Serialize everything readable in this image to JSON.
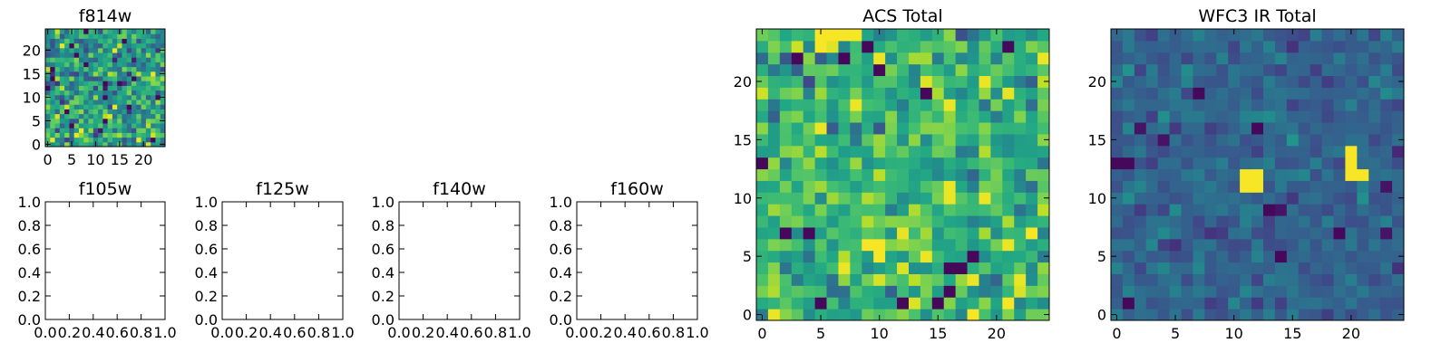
{
  "colors": {
    "colormap": "viridis",
    "axes": "#000000",
    "background": "#ffffff"
  },
  "chart_data": [
    {
      "type": "heatmap",
      "title": "f814w",
      "xlabel": "",
      "ylabel": "",
      "shape": [
        25,
        25
      ],
      "xlim": [
        -0.5,
        24.5
      ],
      "ylim": [
        -0.5,
        24.5
      ],
      "xticks": [
        0,
        5,
        10,
        15,
        20
      ],
      "yticks": [
        0,
        5,
        10,
        15,
        20
      ],
      "xtick_labels": [
        "0",
        "5",
        "10",
        "15",
        "20"
      ],
      "ytick_labels": [
        "0",
        "5",
        "10",
        "15",
        "20"
      ],
      "colormap": "viridis",
      "value_range": [
        0,
        1
      ],
      "values": "random noise, mean ~0.55, std ~0.18",
      "grid": false
    },
    {
      "type": "table",
      "title": "f105w",
      "xlim": [
        0,
        1
      ],
      "ylim": [
        0,
        1
      ],
      "xticks": [
        0,
        0.2,
        0.4,
        0.6,
        0.8,
        1.0
      ],
      "yticks": [
        0,
        0.2,
        0.4,
        0.6,
        0.8,
        1.0
      ],
      "xtick_labels": [
        "0.0",
        "0.2",
        "0.4",
        "0.6",
        "0.8",
        "1.0"
      ],
      "ytick_labels": [
        "0.0",
        "0.2",
        "0.4",
        "0.6",
        "0.8",
        "1.0"
      ],
      "empty": true
    },
    {
      "type": "table",
      "title": "f125w",
      "xlim": [
        0,
        1
      ],
      "ylim": [
        0,
        1
      ],
      "xticks": [
        0,
        0.2,
        0.4,
        0.6,
        0.8,
        1.0
      ],
      "yticks": [
        0,
        0.2,
        0.4,
        0.6,
        0.8,
        1.0
      ],
      "xtick_labels": [
        "0.0",
        "0.2",
        "0.4",
        "0.6",
        "0.8",
        "1.0"
      ],
      "ytick_labels": [
        "0.0",
        "0.2",
        "0.4",
        "0.6",
        "0.8",
        "1.0"
      ],
      "empty": true
    },
    {
      "type": "table",
      "title": "f140w",
      "xlim": [
        0,
        1
      ],
      "ylim": [
        0,
        1
      ],
      "xticks": [
        0,
        0.2,
        0.4,
        0.6,
        0.8,
        1.0
      ],
      "yticks": [
        0,
        0.2,
        0.4,
        0.6,
        0.8,
        1.0
      ],
      "xtick_labels": [
        "0.0",
        "0.2",
        "0.4",
        "0.6",
        "0.8",
        "1.0"
      ],
      "ytick_labels": [
        "0.0",
        "0.2",
        "0.4",
        "0.6",
        "0.8",
        "1.0"
      ],
      "empty": true
    },
    {
      "type": "table",
      "title": "f160w",
      "xlim": [
        0,
        1
      ],
      "ylim": [
        0,
        1
      ],
      "xticks": [
        0,
        0.2,
        0.4,
        0.6,
        0.8,
        1.0
      ],
      "yticks": [
        0,
        0.2,
        0.4,
        0.6,
        0.8,
        1.0
      ],
      "xtick_labels": [
        "0.0",
        "0.2",
        "0.4",
        "0.6",
        "0.8",
        "1.0"
      ],
      "ytick_labels": [
        "0.0",
        "0.2",
        "0.4",
        "0.6",
        "0.8",
        "1.0"
      ],
      "empty": true
    },
    {
      "type": "heatmap",
      "title": "ACS Total",
      "xlabel": "",
      "ylabel": "",
      "shape": [
        25,
        25
      ],
      "xlim": [
        -0.5,
        24.5
      ],
      "ylim": [
        -0.5,
        24.5
      ],
      "xticks": [
        0,
        5,
        10,
        15,
        20
      ],
      "yticks": [
        0,
        5,
        10,
        15,
        20
      ],
      "xtick_labels": [
        "0",
        "5",
        "10",
        "15",
        "20"
      ],
      "ytick_labels": [
        "0",
        "5",
        "10",
        "15",
        "20"
      ],
      "colormap": "viridis",
      "value_range": [
        0,
        1
      ],
      "values": "random noise, mean ~0.65, std ~0.15; bright cells near (5-8,23-24), (9-10,5-6), (18,0), (23,7)",
      "grid": false
    },
    {
      "type": "heatmap",
      "title": "WFC3 IR Total",
      "xlabel": "",
      "ylabel": "",
      "shape": [
        25,
        25
      ],
      "xlim": [
        -0.5,
        24.5
      ],
      "ylim": [
        -0.5,
        24.5
      ],
      "xticks": [
        0,
        5,
        10,
        15,
        20
      ],
      "yticks": [
        0,
        5,
        10,
        15,
        20
      ],
      "xtick_labels": [
        "0",
        "5",
        "10",
        "15",
        "20"
      ],
      "ytick_labels": [
        "0",
        "5",
        "10",
        "15",
        "20"
      ],
      "colormap": "viridis",
      "value_range": [
        0,
        1
      ],
      "values": "low noise, mean ~0.32, std ~0.07; bright sources at (11-12,11-12) and (20,12-14),(21,12)",
      "grid": false,
      "bright_cells": [
        [
          11,
          11
        ],
        [
          12,
          11
        ],
        [
          11,
          12
        ],
        [
          12,
          12
        ],
        [
          20,
          12
        ],
        [
          21,
          12
        ],
        [
          20,
          13
        ],
        [
          20,
          14
        ]
      ]
    }
  ]
}
